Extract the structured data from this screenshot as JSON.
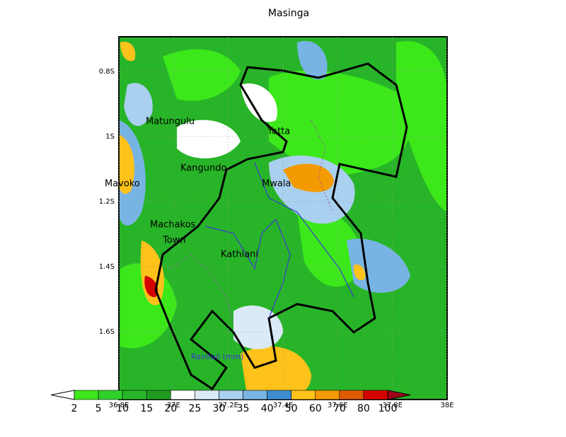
{
  "title": "Masinga",
  "lat_ticks": [
    "0.8S",
    "1S",
    "1.2S",
    "1.4S",
    "1.6S"
  ],
  "lon_ticks": [
    "36.8E",
    "37E",
    "37.2E",
    "37.4E",
    "37.6E",
    "37.8E",
    "38E"
  ],
  "places": [
    "Matungulu",
    "Yatta",
    "Kangundo",
    "Mavoko",
    "Mwala",
    "Machakos",
    "Town",
    "Kathiani"
  ],
  "overlay_label": "Rainfall (mm)",
  "colorbar": {
    "levels": [
      2,
      5,
      10,
      15,
      20,
      25,
      30,
      35,
      40,
      50,
      60,
      70,
      80,
      100
    ],
    "colors": [
      "#ffffff",
      "#3ce81a",
      "#2fd12a",
      "#28b428",
      "#1f9a1f",
      "#ffffff",
      "#dbeaf7",
      "#a9d0ef",
      "#78b4e3",
      "#3d8cd0",
      "#ffc21a",
      "#f39a00",
      "#e05a00",
      "#d40000",
      "#a0001a"
    ]
  }
}
